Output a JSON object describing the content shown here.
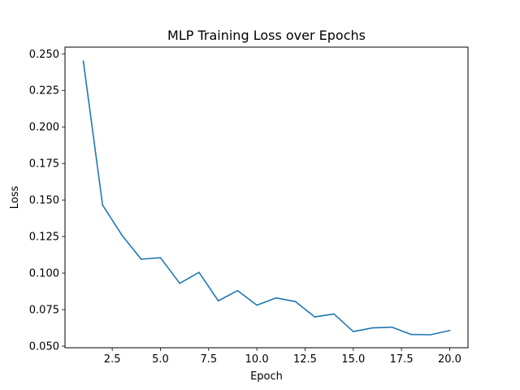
{
  "chart_data": {
    "type": "line",
    "title": "MLP Training Loss over Epochs",
    "xlabel": "Epoch",
    "ylabel": "Loss",
    "xlim": [
      0.05,
      20.95
    ],
    "ylim": [
      0.0489,
      0.2546
    ],
    "xticks": [
      2.5,
      5.0,
      7.5,
      10.0,
      12.5,
      15.0,
      17.5,
      20.0
    ],
    "xtick_labels": [
      "2.5",
      "5.0",
      "7.5",
      "10.0",
      "12.5",
      "15.0",
      "17.5",
      "20.0"
    ],
    "yticks": [
      0.05,
      0.075,
      0.1,
      0.125,
      0.15,
      0.175,
      0.2,
      0.225,
      0.25
    ],
    "ytick_labels": [
      "0.050",
      "0.075",
      "0.100",
      "0.125",
      "0.150",
      "0.175",
      "0.200",
      "0.225",
      "0.250"
    ],
    "grid": false,
    "series_color": "#1f77b4",
    "x": [
      1,
      2,
      3,
      4,
      5,
      6,
      7,
      8,
      9,
      10,
      11,
      12,
      13,
      14,
      15,
      16,
      17,
      18,
      19,
      20
    ],
    "values": [
      0.245,
      0.1465,
      0.126,
      0.1095,
      0.1105,
      0.093,
      0.1005,
      0.081,
      0.088,
      0.078,
      0.083,
      0.0805,
      0.07,
      0.072,
      0.06,
      0.0625,
      0.063,
      0.058,
      0.0578,
      0.0607
    ]
  }
}
